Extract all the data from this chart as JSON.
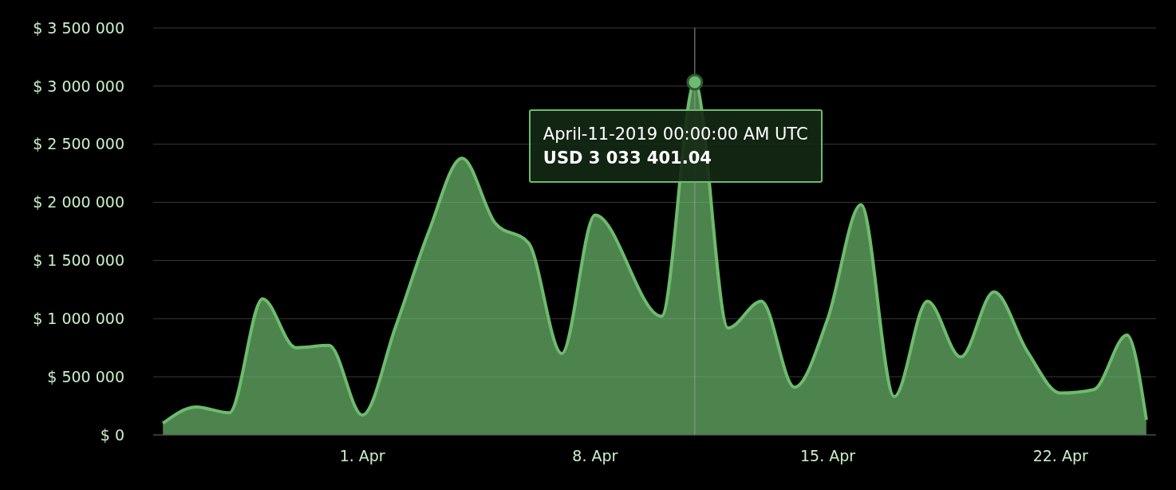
{
  "chart_data": {
    "type": "area",
    "x": [
      "2019-03-26",
      "2019-03-27",
      "2019-03-28",
      "2019-03-29",
      "2019-03-30",
      "2019-03-31",
      "2019-04-01",
      "2019-04-02",
      "2019-04-03",
      "2019-04-04",
      "2019-04-05",
      "2019-04-06",
      "2019-04-07",
      "2019-04-08",
      "2019-04-09",
      "2019-04-10",
      "2019-04-11",
      "2019-04-12",
      "2019-04-13",
      "2019-04-14",
      "2019-04-15",
      "2019-04-16",
      "2019-04-17",
      "2019-04-18",
      "2019-04-19",
      "2019-04-20",
      "2019-04-21",
      "2019-04-22",
      "2019-04-23",
      "2019-04-24",
      "2019-04-24T14:00"
    ],
    "series": [
      {
        "color": "#6dbb6d",
        "values": [
          100000,
          240000,
          190000,
          1170000,
          750000,
          770000,
          170000,
          930000,
          1750000,
          2380000,
          1820000,
          1650000,
          700000,
          1890000,
          null,
          1020000,
          3033401.04,
          920000,
          1150000,
          410000,
          1000000,
          1980000,
          330000,
          1150000,
          670000,
          1230000,
          720000,
          360000,
          390000,
          860000,
          130000
        ]
      }
    ],
    "xlim": [
      "2019-03-25T17:00",
      "2019-04-24T21:00"
    ],
    "xticks": [
      {
        "value": "2019-04-01",
        "label": "1. Apr"
      },
      {
        "value": "2019-04-08",
        "label": "8. Apr"
      },
      {
        "value": "2019-04-15",
        "label": "15. Apr"
      },
      {
        "value": "2019-04-22",
        "label": "22. Apr"
      }
    ],
    "ylim": [
      0,
      3500000
    ],
    "yticks": [
      {
        "value": 0,
        "label": "$ 0"
      },
      {
        "value": 500000,
        "label": "$ 500 000"
      },
      {
        "value": 1000000,
        "label": "$ 1 000 000"
      },
      {
        "value": 1500000,
        "label": "$ 1 500 000"
      },
      {
        "value": 2000000,
        "label": "$ 2 000 000"
      },
      {
        "value": 2500000,
        "label": "$ 2 500 000"
      },
      {
        "value": 3000000,
        "label": "$ 3 000 000"
      },
      {
        "value": 3500000,
        "label": "$ 3 500 000"
      }
    ],
    "grid": "y",
    "marker": "none",
    "line_style": "solid",
    "ref_lines": [
      {
        "axis": "x",
        "value": "2019-04-11",
        "color": "#999999"
      }
    ],
    "annotations": [
      {
        "text": "April-11-2019 00:00:00 AM UTC\nUSD 3 033 401.04",
        "x": "2019-04-11",
        "y": 3033401.04
      }
    ]
  }
}
